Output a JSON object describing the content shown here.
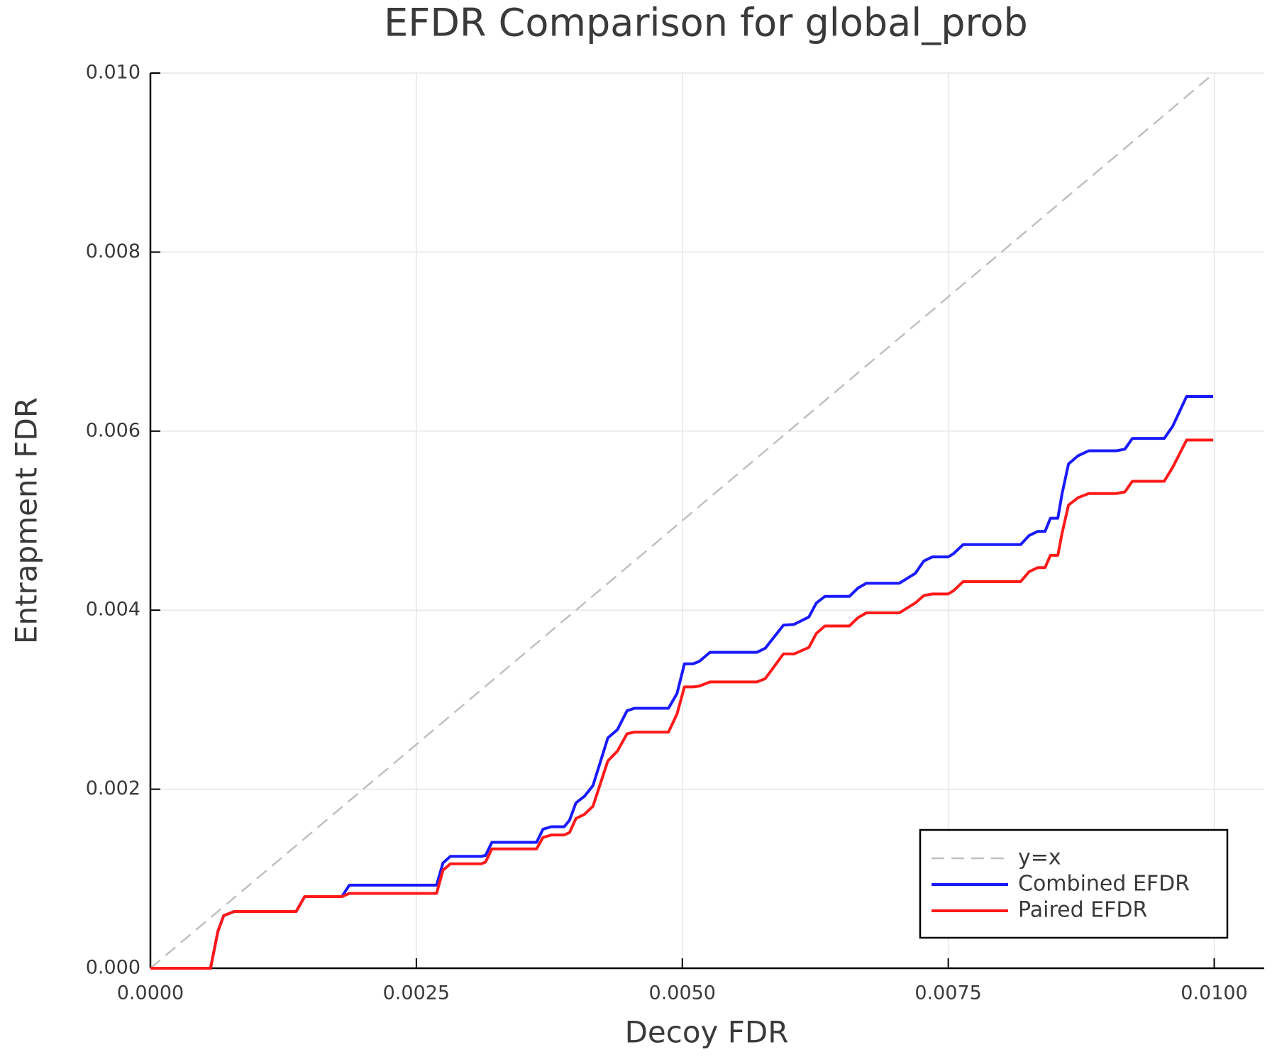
{
  "chart_data": {
    "type": "line",
    "title": "EFDR Comparison for global_prob",
    "x_label": "Decoy FDR",
    "y_label": "Entrapment FDR",
    "xlim": [
      0,
      0.01047
    ],
    "ylim": [
      0,
      0.01
    ],
    "xticks": [
      {
        "value": 0,
        "label": "0.0000"
      },
      0.0025,
      {
        "value": 0.005,
        "label": "0.0050"
      },
      0.0075,
      {
        "value": 0.01,
        "label": "0.0100"
      }
    ],
    "yticks": [
      {
        "value": 0,
        "label": "0.000"
      },
      0.002,
      0.004,
      0.006,
      0.008,
      {
        "value": 0.01,
        "label": "0.010"
      }
    ],
    "grid": true,
    "legend_position": "lower right",
    "x": [
      0,
      0.000565,
      0.000635,
      0.000689,
      0.000789,
      0.00137,
      0.00145,
      0.0018,
      0.00187,
      0.00269,
      0.00275,
      0.00282,
      0.00311,
      0.00315,
      0.00321,
      0.00363,
      0.00369,
      0.00377,
      0.00389,
      0.00394,
      0.004,
      0.00408,
      0.00416,
      0.0043,
      0.00439,
      0.00448,
      0.00455,
      0.00487,
      0.00495,
      0.00502,
      0.0051,
      0.00516,
      0.00526,
      0.0057,
      0.00578,
      0.00595,
      0.00605,
      0.00619,
      0.00626,
      0.00634,
      0.00657,
      0.00665,
      0.00673,
      0.00704,
      0.00719,
      0.00727,
      0.00735,
      0.0075,
      0.00755,
      0.00764,
      0.00818,
      0.00826,
      0.00834,
      0.00841,
      0.00846,
      0.00853,
      0.00857,
      0.00863,
      0.00872,
      0.00882,
      0.00908,
      0.00916,
      0.00923,
      0.00953,
      0.00961,
      0.00974,
      0.00999
    ],
    "series": [
      {
        "name": "y=x",
        "color": "#c0c0c0",
        "dashed": true,
        "x": [
          0,
          0.01
        ],
        "values": [
          0,
          0.01
        ]
      },
      {
        "name": "Combined EFDR",
        "color": "#1a1aff",
        "dashed": false,
        "values": [
          0,
          0,
          0.000414,
          0.000588,
          0.000634,
          0.000634,
          0.0008,
          0.0008,
          0.000928,
          0.000928,
          0.001176,
          0.00125,
          0.00125,
          0.00126,
          0.001406,
          0.001406,
          0.001553,
          0.001581,
          0.001581,
          0.001654,
          0.001847,
          0.001921,
          0.00204,
          0.002573,
          0.002665,
          0.002876,
          0.002904,
          0.002904,
          0.003069,
          0.0034,
          0.0034,
          0.003428,
          0.003529,
          0.003529,
          0.003575,
          0.003832,
          0.003841,
          0.003924,
          0.00408,
          0.004154,
          0.004154,
          0.004246,
          0.004301,
          0.004301,
          0.004411,
          0.004549,
          0.004595,
          0.004595,
          0.004632,
          0.004733,
          0.004733,
          0.004834,
          0.00488,
          0.00488,
          0.005027,
          0.005027,
          0.005303,
          0.005633,
          0.005725,
          0.00578,
          0.00578,
          0.005799,
          0.005918,
          0.005918,
          0.006056,
          0.006387,
          0.006387
        ]
      },
      {
        "name": "Paired EFDR",
        "color": "#ff1a1a",
        "dashed": false,
        "values": [
          0,
          0,
          0.000414,
          0.000588,
          0.000634,
          0.000634,
          0.0008,
          0.0008,
          0.000836,
          0.000836,
          0.001094,
          0.001167,
          0.001167,
          0.001186,
          0.001333,
          0.001333,
          0.001461,
          0.001489,
          0.001489,
          0.001516,
          0.001673,
          0.001719,
          0.00181,
          0.002316,
          0.002426,
          0.002619,
          0.002638,
          0.002638,
          0.00284,
          0.003143,
          0.003143,
          0.003152,
          0.003198,
          0.003198,
          0.003235,
          0.003511,
          0.003511,
          0.003584,
          0.00374,
          0.003823,
          0.003823,
          0.003915,
          0.00397,
          0.00397,
          0.00408,
          0.004163,
          0.004181,
          0.004181,
          0.004218,
          0.004319,
          0.004319,
          0.00443,
          0.004475,
          0.004475,
          0.004613,
          0.004613,
          0.004861,
          0.005174,
          0.005257,
          0.005303,
          0.005303,
          0.005321,
          0.00544,
          0.00544,
          0.005597,
          0.0059,
          0.0059
        ]
      }
    ]
  }
}
